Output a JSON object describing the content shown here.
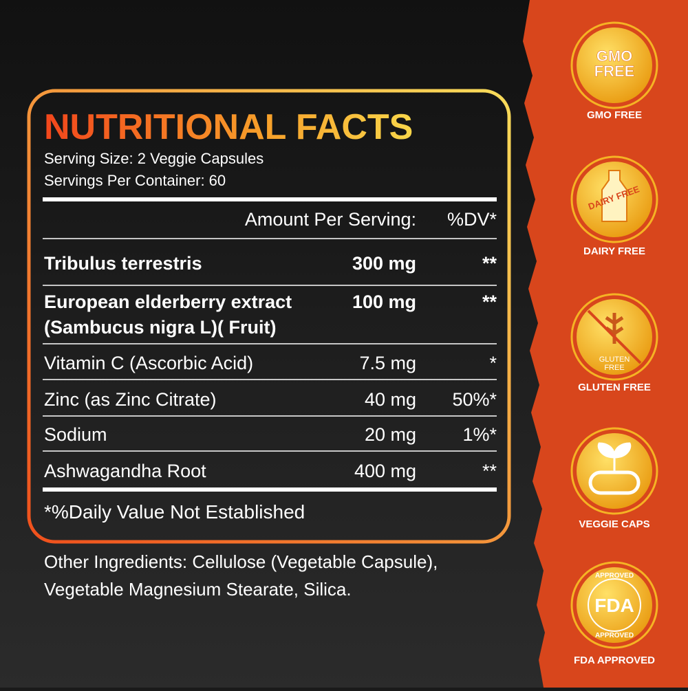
{
  "panel": {
    "title": "NUTRITIONAL FACTS",
    "serving_size": "Serving Size: 2 Veggie Capsules",
    "servings_per_container": "Servings Per Container: 60",
    "header": {
      "amount": "Amount Per Serving:",
      "dv": "%DV*"
    },
    "rows": [
      {
        "name": [
          "Tribulus terrestris"
        ],
        "amount": "300 mg",
        "dv": "**"
      },
      {
        "name": [
          "European elderberry extract",
          "(Sambucus nigra L)( Fruit)"
        ],
        "amount": "100 mg",
        "dv": "**"
      },
      {
        "name": [
          "Vitamin C (Ascorbic Acid)"
        ],
        "amount": "7.5 mg",
        "dv": "*"
      },
      {
        "name": [
          "Zinc (as Zinc Citrate)"
        ],
        "amount": "40 mg",
        "dv": "50%*"
      },
      {
        "name": [
          "Sodium"
        ],
        "amount": "20 mg",
        "dv": "1%*"
      },
      {
        "name": [
          "Ashwagandha Root"
        ],
        "amount": "400 mg",
        "dv": "**"
      }
    ],
    "footnote": "*%Daily Value Not Established"
  },
  "other_ingredients": [
    "Other Ingredients: Cellulose (Vegetable Capsule),",
    "Vegetable Magnesium Stearate, Silica."
  ],
  "badges": [
    {
      "icon_text": [
        "GMO",
        "FREE"
      ],
      "caption": "GMO FREE"
    },
    {
      "icon_text": [
        "DAIRY FREE"
      ],
      "caption": "DAIRY FREE"
    },
    {
      "icon_text": [
        "GLUTEN",
        "FREE"
      ],
      "caption": "GLUTEN FREE"
    },
    {
      "icon_text": [],
      "caption": "VEGGIE CAPS"
    },
    {
      "icon_text": [
        "APPROVED",
        "FDA",
        "APPROVED"
      ],
      "caption": "FDA APPROVED"
    }
  ]
}
